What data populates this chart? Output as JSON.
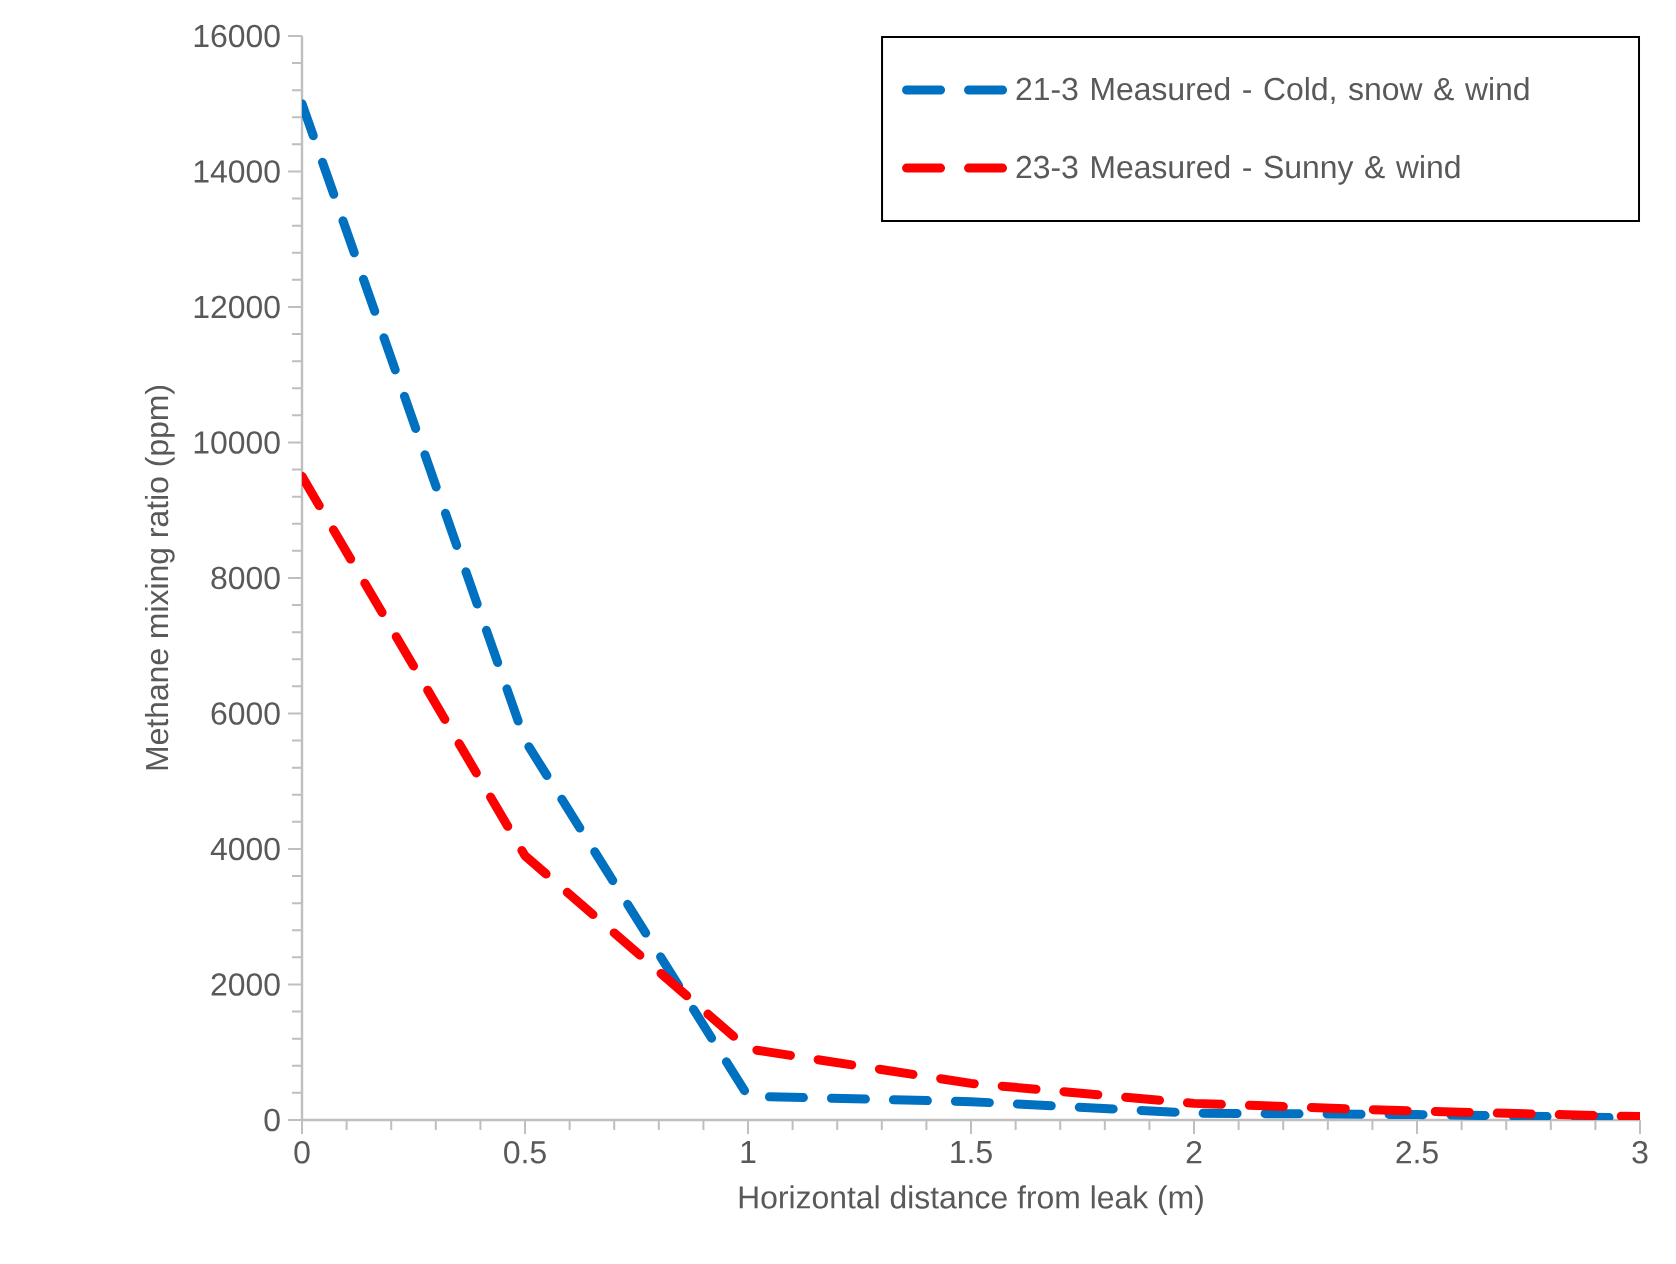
{
  "chart_data": {
    "type": "line",
    "xlabel": "Horizontal distance from leak (m)",
    "ylabel": "Methane mixing ratio (ppm)",
    "xlim": [
      0,
      3
    ],
    "ylim": [
      0,
      16000
    ],
    "xticks": [
      0,
      0.5,
      1,
      1.5,
      2,
      2.5,
      3
    ],
    "yticks": [
      0,
      2000,
      4000,
      6000,
      8000,
      10000,
      12000,
      14000,
      16000
    ],
    "x": [
      0,
      0.5,
      1,
      1.5,
      2,
      2.5,
      3
    ],
    "series": [
      {
        "name": "21-3 Measured - Cold, snow & wind",
        "color": "#0070c0",
        "values": [
          15000,
          5600,
          350,
          270,
          100,
          80,
          30
        ]
      },
      {
        "name": "23-3 Measured - Sunny & wind",
        "color": "#ff0000",
        "values": [
          9500,
          3900,
          1050,
          540,
          245,
          130,
          50
        ]
      }
    ],
    "grid": false,
    "legend": "top right",
    "marker": "none",
    "line_style": "dashed"
  }
}
